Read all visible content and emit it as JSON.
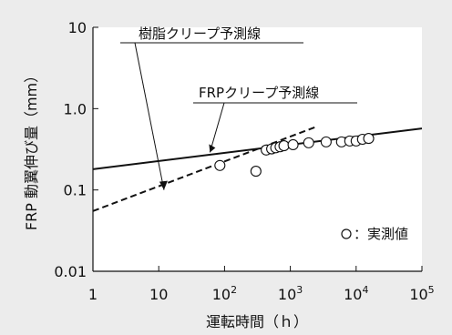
{
  "chart_data": {
    "type": "scatter",
    "xscale": "log",
    "yscale": "log",
    "xlim": [
      1,
      100000
    ],
    "ylim": [
      0.01,
      10
    ],
    "xlabel": "運転時間（ｈ）",
    "ylabel": "FRP 動翼伸び量（mm）",
    "xticks": [
      {
        "base": "1",
        "exp": ""
      },
      {
        "base": "10",
        "exp": ""
      },
      {
        "base": "10",
        "exp": "2"
      },
      {
        "base": "10",
        "exp": "3"
      },
      {
        "base": "10",
        "exp": "4"
      },
      {
        "base": "10",
        "exp": "5"
      }
    ],
    "yticks": [
      "0.01",
      "0.1",
      "1.0",
      "10"
    ],
    "ytick_values": [
      0.01,
      0.1,
      1.0,
      10
    ],
    "series": [
      {
        "name": "実測値",
        "kind": "points",
        "marker": "open-circle",
        "points": [
          [
            85,
            0.2
          ],
          [
            300,
            0.17
          ],
          [
            430,
            0.31
          ],
          [
            520,
            0.32
          ],
          [
            600,
            0.33
          ],
          [
            700,
            0.34
          ],
          [
            800,
            0.35
          ],
          [
            1100,
            0.36
          ],
          [
            1900,
            0.38
          ],
          [
            3500,
            0.39
          ],
          [
            6000,
            0.39
          ],
          [
            8000,
            0.4
          ],
          [
            10000,
            0.4
          ],
          [
            12500,
            0.42
          ],
          [
            15500,
            0.43
          ]
        ]
      },
      {
        "name": "FRPクリープ予測線",
        "kind": "line",
        "dash": "solid",
        "points": [
          [
            1,
            0.18
          ],
          [
            100000,
            0.57
          ]
        ]
      },
      {
        "name": "樹脂クリープ予測線",
        "kind": "line",
        "dash": "dashed",
        "points": [
          [
            1,
            0.055
          ],
          [
            2500,
            0.6
          ]
        ]
      }
    ],
    "annotations": [
      {
        "text": "樹脂クリープ予測線",
        "target": [
          12,
          0.1
        ]
      },
      {
        "text": "FRPクリープ予測線",
        "target": [
          60,
          0.29
        ]
      }
    ],
    "legend": {
      "text": "：実測値",
      "placement": "bottom-right"
    }
  }
}
